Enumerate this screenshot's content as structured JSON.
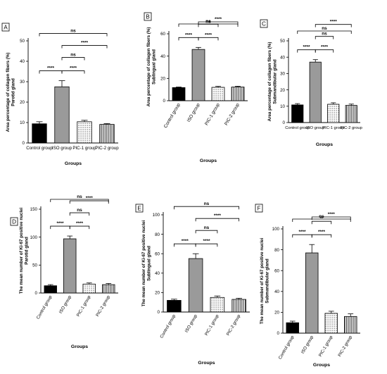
{
  "panels": [
    {
      "panel_label": "A",
      "chart_data": {
        "type": "bar",
        "categories": [
          "Control group",
          "ISO group",
          "PIC-1 group",
          "PIC-2 group"
        ],
        "values": [
          9.4,
          27.5,
          10.4,
          9.1
        ],
        "errors": [
          1.0,
          3.0,
          0.7,
          0.4
        ],
        "ylabel_lines": [
          "Area percentage of collagen fibers (%)",
          "Parotid gland"
        ],
        "xlabel": "Groups",
        "ylim": [
          0,
          50
        ],
        "yticks": [
          0,
          10,
          20,
          30,
          40,
          50
        ],
        "grid": false,
        "significance": [
          {
            "from": 0,
            "to": 1,
            "label": "****"
          },
          {
            "from": 1,
            "to": 2,
            "label": "****"
          },
          {
            "from": 1,
            "to": 2,
            "label": "ns"
          },
          {
            "from": 1,
            "to": 3,
            "label": "****"
          },
          {
            "from": 0,
            "to": 3,
            "label": "ns"
          }
        ]
      }
    },
    {
      "panel_label": "B",
      "chart_data": {
        "type": "bar",
        "categories": [
          "Control group",
          "ISO group",
          "PIC-1 group",
          "PIC-2 group"
        ],
        "values": [
          11.8,
          46.0,
          12.0,
          12.3
        ],
        "errors": [
          0.5,
          1.8,
          0.9,
          0.7
        ],
        "ylabel_lines": [
          "Area percentage of collagen fibers (%)",
          "Sublingual gland"
        ],
        "xlabel": "Groups",
        "ylim": [
          0,
          60
        ],
        "yticks": [
          0,
          20,
          40,
          60
        ],
        "grid": false,
        "significance": [
          {
            "from": 0,
            "to": 1,
            "label": "****"
          },
          {
            "from": 1,
            "to": 2,
            "label": "****"
          },
          {
            "from": 1,
            "to": 2,
            "label": "ns"
          },
          {
            "from": 1,
            "to": 3,
            "label": "****"
          },
          {
            "from": 0,
            "to": 3,
            "label": "ns"
          }
        ]
      }
    },
    {
      "panel_label": "C",
      "chart_data": {
        "type": "bar",
        "categories": [
          "Control group",
          "ISO group",
          "PIC-1 group",
          "PIC-2 group"
        ],
        "values": [
          10.8,
          37.0,
          11.2,
          10.5
        ],
        "errors": [
          0.8,
          1.5,
          0.9,
          0.8
        ],
        "ylabel_lines": [
          "Area percentage of collagen fibers (%)",
          "Submandibular gland"
        ],
        "xlabel": "Groups",
        "ylim": [
          0,
          50
        ],
        "yticks": [
          0,
          10,
          20,
          30,
          40,
          50
        ],
        "grid": false,
        "significance": [
          {
            "from": 0,
            "to": 1,
            "label": "****"
          },
          {
            "from": 1,
            "to": 2,
            "label": "****"
          },
          {
            "from": 1,
            "to": 2,
            "label": "ns"
          },
          {
            "from": 1,
            "to": 3,
            "label": "****"
          },
          {
            "from": 0,
            "to": 3,
            "label": "ns"
          }
        ]
      }
    },
    {
      "panel_label": "D",
      "chart_data": {
        "type": "bar",
        "categories": [
          "Control group",
          "ISO group",
          "PIC-1 group",
          "PIC-2 group"
        ],
        "values": [
          13,
          97,
          16,
          15
        ],
        "errors": [
          2,
          5,
          2,
          2
        ],
        "ylabel_lines": [
          "The mean number of Ki-67 positive nuclei",
          "Parotid gland"
        ],
        "xlabel": "Groups",
        "ylim": [
          0,
          150
        ],
        "yticks": [
          0,
          50,
          100,
          150
        ],
        "grid": false,
        "significance": [
          {
            "from": 0,
            "to": 1,
            "label": "****"
          },
          {
            "from": 1,
            "to": 2,
            "label": "****"
          },
          {
            "from": 1,
            "to": 2,
            "label": "ns"
          },
          {
            "from": 1,
            "to": 3,
            "label": "****"
          },
          {
            "from": 0,
            "to": 3,
            "label": "ns"
          }
        ]
      }
    },
    {
      "panel_label": "E",
      "chart_data": {
        "type": "bar",
        "categories": [
          "Control group",
          "ISO group",
          "PIC-1 group",
          "PIC-2 group"
        ],
        "values": [
          12,
          55,
          15,
          13
        ],
        "errors": [
          1.2,
          5,
          1.5,
          1.2
        ],
        "ylabel_lines": [
          "The mean number of Ki-67 positive nuclei",
          "Sublingual gland"
        ],
        "xlabel": "Groups",
        "ylim": [
          0,
          100
        ],
        "yticks": [
          0,
          20,
          40,
          60,
          80,
          100
        ],
        "grid": false,
        "significance": [
          {
            "from": 0,
            "to": 1,
            "label": "****"
          },
          {
            "from": 1,
            "to": 2,
            "label": "****"
          },
          {
            "from": 1,
            "to": 2,
            "label": "ns"
          },
          {
            "from": 1,
            "to": 3,
            "label": "****"
          },
          {
            "from": 0,
            "to": 3,
            "label": "ns"
          }
        ]
      }
    },
    {
      "panel_label": "F",
      "chart_data": {
        "type": "bar",
        "categories": [
          "Control group",
          "ISO group",
          "PIC-1 group",
          "PIC-2 group"
        ],
        "values": [
          10,
          77,
          19,
          16
        ],
        "errors": [
          1.5,
          8,
          2,
          2.5
        ],
        "ylabel_lines": [
          "The mean number of Ki-67 positive nuclei",
          "Submandibular gland"
        ],
        "xlabel": "Groups",
        "ylim": [
          0,
          100
        ],
        "yticks": [
          0,
          20,
          40,
          60,
          80,
          100
        ],
        "grid": false,
        "significance": [
          {
            "from": 0,
            "to": 1,
            "label": "****"
          },
          {
            "from": 1,
            "to": 2,
            "label": "****"
          },
          {
            "from": 1,
            "to": 2,
            "label": "**"
          },
          {
            "from": 1,
            "to": 3,
            "label": "****"
          },
          {
            "from": 0,
            "to": 3,
            "label": "ns"
          }
        ]
      }
    }
  ]
}
